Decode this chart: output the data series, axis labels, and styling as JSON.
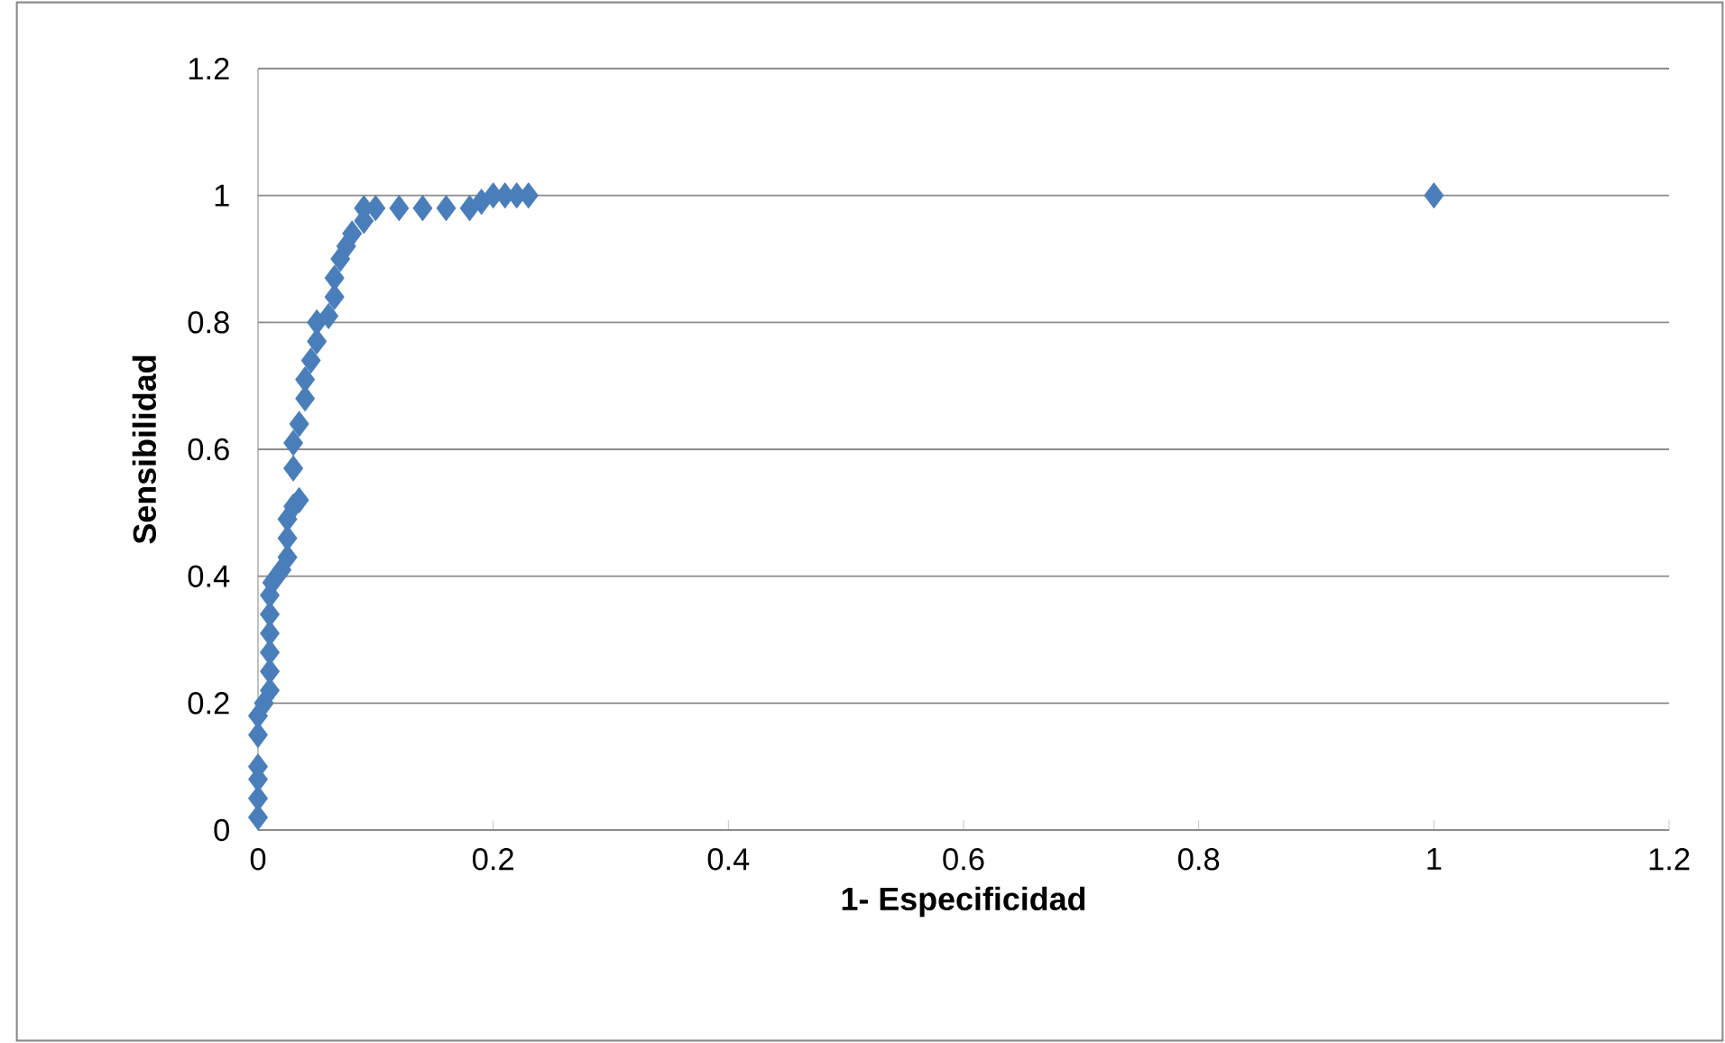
{
  "chart_data": {
    "type": "scatter",
    "xlabel": "1- Especificidad",
    "ylabel": "Sensibilidad",
    "xlim": [
      0,
      1.2
    ],
    "ylim": [
      0,
      1.2
    ],
    "xticks": [
      0,
      0.2,
      0.4,
      0.6,
      0.8,
      1,
      1.2
    ],
    "yticks": [
      0,
      0.2,
      0.4,
      0.6,
      0.8,
      1,
      1.2
    ],
    "grid": "y",
    "marker": "diamond",
    "legend": false,
    "series": [
      {
        "color": "#4a7ebb",
        "x": [
          0,
          0,
          0,
          0,
          0,
          0,
          0.005,
          0.01,
          0.01,
          0.01,
          0.01,
          0.01,
          0.01,
          0.012,
          0.02,
          0.025,
          0.025,
          0.025,
          0.03,
          0.035,
          0.03,
          0.03,
          0.035,
          0.04,
          0.04,
          0.045,
          0.05,
          0.05,
          0.06,
          0.065,
          0.065,
          0.07,
          0.075,
          0.08,
          0.09,
          0.09,
          0.1,
          0.12,
          0.14,
          0.16,
          0.18,
          0.19,
          0.2,
          0.21,
          0.22,
          0.23,
          1
        ],
        "values": [
          0.02,
          0.05,
          0.08,
          0.1,
          0.15,
          0.18,
          0.2,
          0.22,
          0.25,
          0.28,
          0.31,
          0.34,
          0.37,
          0.39,
          0.41,
          0.43,
          0.46,
          0.49,
          0.51,
          0.52,
          0.57,
          0.61,
          0.64,
          0.68,
          0.71,
          0.74,
          0.77,
          0.8,
          0.81,
          0.84,
          0.87,
          0.9,
          0.92,
          0.94,
          0.96,
          0.98,
          0.98,
          0.98,
          0.98,
          0.98,
          0.98,
          0.99,
          1,
          1,
          1,
          1,
          1
        ]
      }
    ]
  }
}
